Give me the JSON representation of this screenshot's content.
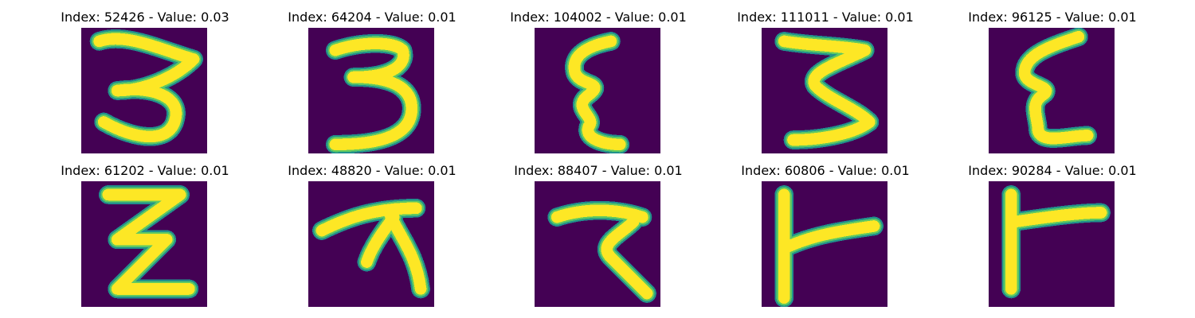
{
  "colors": {
    "background": "#440154",
    "stroke_core": "#fde725",
    "stroke_mid": "#5ec962",
    "stroke_edge": "#21918c"
  },
  "panels": [
    {
      "title": "Index: 52426 - Value: 0.03"
    },
    {
      "title": "Index: 64204 - Value: 0.01"
    },
    {
      "title": "Index: 104002 - Value: 0.01"
    },
    {
      "title": "Index: 111011 - Value: 0.01"
    },
    {
      "title": "Index: 96125 - Value: 0.01"
    },
    {
      "title": "Index: 61202 - Value: 0.01"
    },
    {
      "title": "Index: 48820 - Value: 0.01"
    },
    {
      "title": "Index: 88407 - Value: 0.01"
    },
    {
      "title": "Index: 60806 - Value: 0.01"
    },
    {
      "title": "Index: 90284 - Value: 0.01"
    }
  ]
}
